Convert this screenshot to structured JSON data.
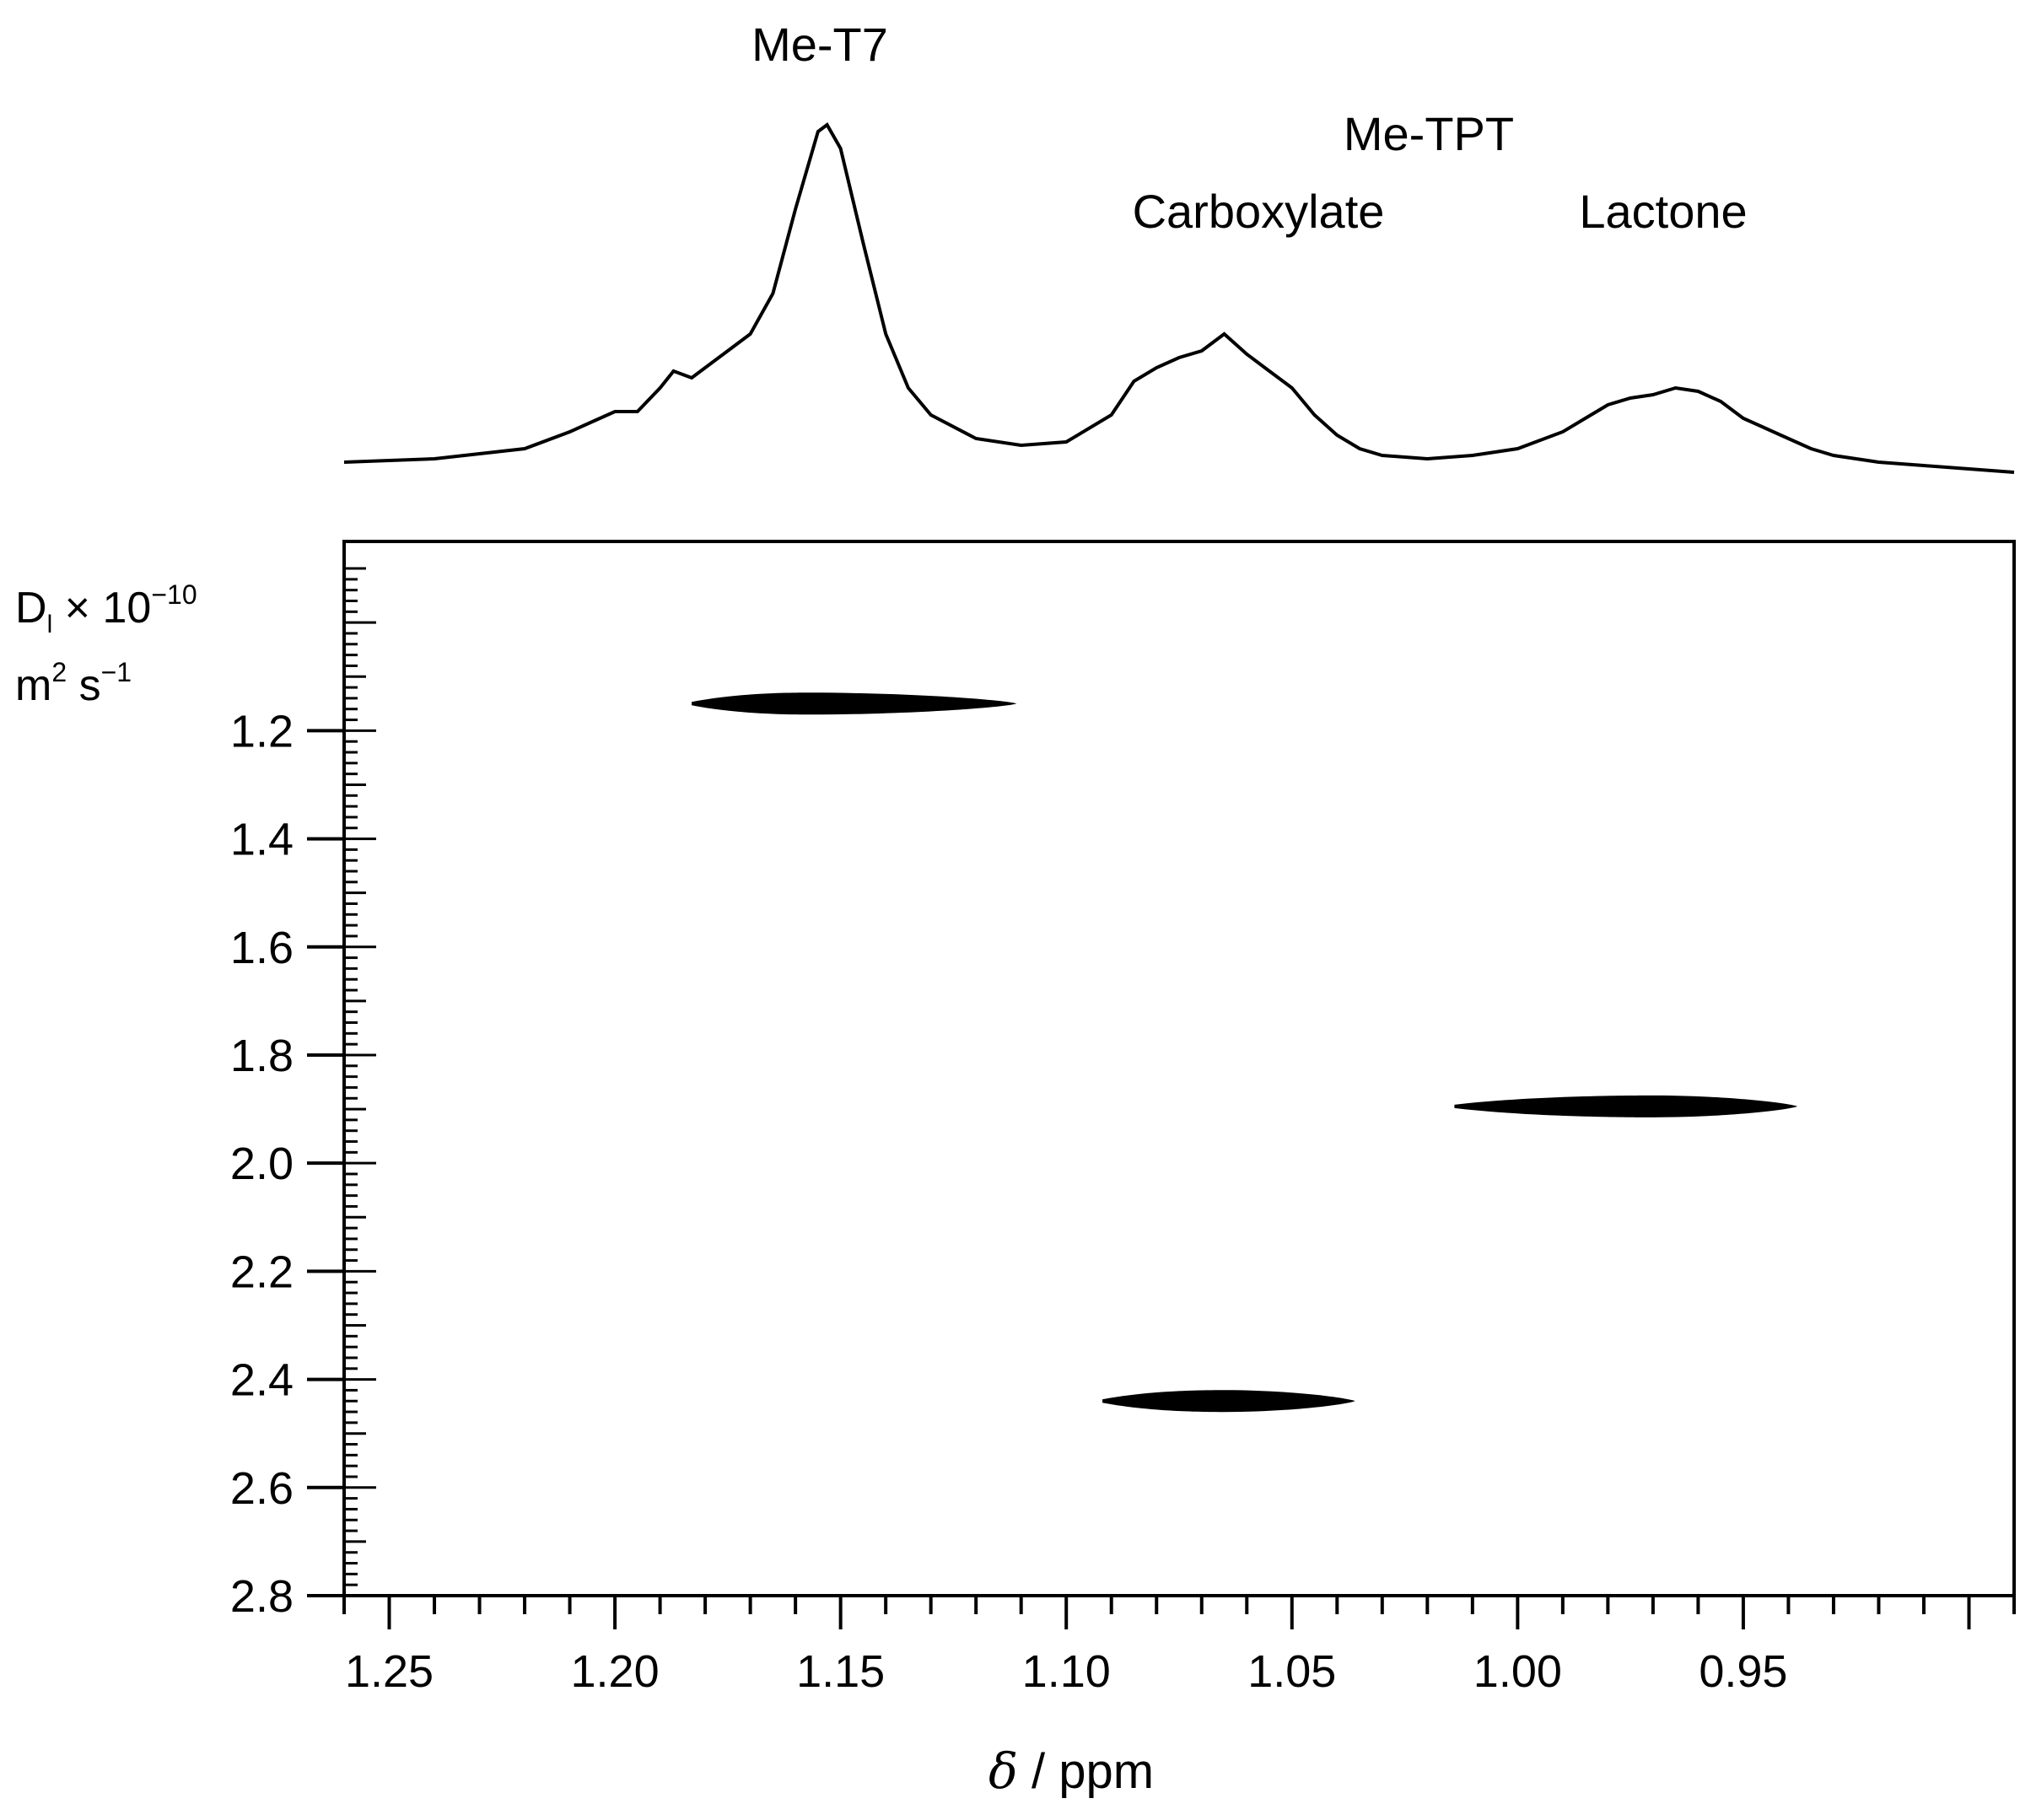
{
  "chart_data": {
    "type": "DOSY 2D NMR spectrum",
    "x_axis": {
      "label_symbol": "δ",
      "label_rest": " / ppm",
      "range": [
        1.26,
        0.89
      ],
      "reversed": true,
      "major_ticks": [
        1.25,
        1.2,
        1.15,
        1.1,
        1.05,
        1.0,
        0.95,
        0.9
      ],
      "tick_labels": [
        "1.25",
        "1.20",
        "1.15",
        "1.10",
        "1.05",
        "1.00",
        "0.95"
      ]
    },
    "y_axis": {
      "label_line1_main": "D",
      "label_line1_sub": "l",
      "label_line1_rest": " × 10",
      "label_line1_exp": "−10",
      "label_line2_main": "m",
      "label_line2_exp1": "2",
      "label_line2_mid": " s",
      "label_line2_exp2": "−1",
      "range": [
        0.85,
        2.8
      ],
      "reversed": true,
      "major_ticks": [
        1.2,
        1.4,
        1.6,
        1.8,
        2.0,
        2.2,
        2.4,
        2.6,
        2.8
      ],
      "tick_labels": [
        "1.2",
        "1.4",
        "1.6",
        "1.8",
        "2.0",
        "2.2",
        "2.4",
        "2.6",
        "2.8"
      ]
    },
    "peak_labels": [
      {
        "text": "Me-T7",
        "ppm": 1.155
      },
      {
        "text": "Me-TPT",
        "ppm": 1.04
      },
      {
        "text": "Carboxylate",
        "ppm": 1.065
      },
      {
        "text": "Lactone",
        "ppm": 0.955
      }
    ],
    "cross_peaks": [
      {
        "name": "Me-T7",
        "ppm_start": 1.183,
        "ppm_end": 1.111,
        "ppm_center": 1.157,
        "D": 1.15
      },
      {
        "name": "Carboxylate",
        "ppm_start": 1.092,
        "ppm_end": 1.036,
        "ppm_center": 1.065,
        "D": 2.44
      },
      {
        "name": "Lactone",
        "ppm_start": 1.014,
        "ppm_end": 0.938,
        "ppm_center": 0.97,
        "D": 1.895
      }
    ],
    "spectrum_1d": {
      "ppm": [
        1.26,
        1.24,
        1.22,
        1.21,
        1.205,
        1.2,
        1.195,
        1.19,
        1.187,
        1.183,
        1.18,
        1.175,
        1.17,
        1.165,
        1.16,
        1.155,
        1.153,
        1.15,
        1.145,
        1.14,
        1.135,
        1.13,
        1.12,
        1.11,
        1.1,
        1.09,
        1.085,
        1.08,
        1.075,
        1.07,
        1.065,
        1.06,
        1.055,
        1.05,
        1.045,
        1.04,
        1.035,
        1.03,
        1.02,
        1.01,
        1.0,
        0.99,
        0.985,
        0.98,
        0.975,
        0.97,
        0.965,
        0.96,
        0.955,
        0.95,
        0.945,
        0.94,
        0.935,
        0.93,
        0.92,
        0.91,
        0.9,
        0.89
      ],
      "intensity": [
        0.0,
        0.01,
        0.04,
        0.09,
        0.12,
        0.15,
        0.15,
        0.22,
        0.27,
        0.25,
        0.28,
        0.33,
        0.38,
        0.5,
        0.75,
        0.98,
        1.0,
        0.93,
        0.65,
        0.38,
        0.22,
        0.14,
        0.07,
        0.05,
        0.06,
        0.14,
        0.24,
        0.28,
        0.31,
        0.33,
        0.38,
        0.32,
        0.27,
        0.22,
        0.14,
        0.08,
        0.04,
        0.02,
        0.01,
        0.02,
        0.04,
        0.09,
        0.13,
        0.17,
        0.19,
        0.2,
        0.22,
        0.21,
        0.18,
        0.13,
        0.1,
        0.07,
        0.04,
        0.02,
        0.0,
        -0.01,
        -0.02,
        -0.03
      ]
    }
  }
}
